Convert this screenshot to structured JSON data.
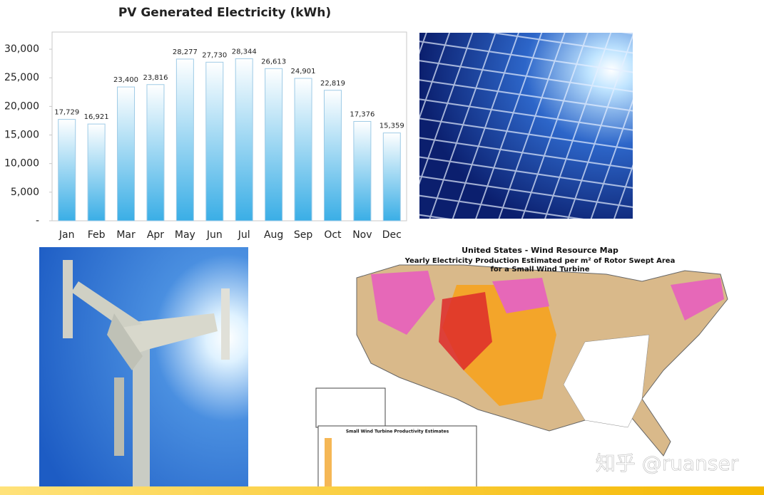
{
  "chart_data": {
    "type": "bar",
    "title": "PV Generated Electricity (kWh)",
    "categories": [
      "Jan",
      "Feb",
      "Mar",
      "Apr",
      "May",
      "Jun",
      "Jul",
      "Aug",
      "Sep",
      "Oct",
      "Nov",
      "Dec"
    ],
    "values": [
      17729,
      16921,
      23400,
      23816,
      28277,
      27730,
      28344,
      26613,
      24901,
      22819,
      17376,
      15359
    ],
    "value_labels": [
      "17,729",
      "16,921",
      "23,400",
      "23,816",
      "28,277",
      "27,730",
      "28,344",
      "26,613",
      "24,901",
      "22,819",
      "17,376",
      "15,359"
    ],
    "color": "#3aaee6",
    "ylim": [
      0,
      33000
    ],
    "yticks": [
      {
        "value": 0,
        "label": "-"
      },
      {
        "value": 5000,
        "label": "5,000"
      },
      {
        "value": 10000,
        "label": "10,000"
      },
      {
        "value": 15000,
        "label": "15,000"
      },
      {
        "value": 20000,
        "label": "20,000"
      },
      {
        "value": 25000,
        "label": "25,000"
      },
      {
        "value": 30000,
        "label": "30,000"
      }
    ],
    "grid": false
  },
  "map": {
    "title": "United States - Wind Resource Map",
    "subtitle": [
      "Yearly Electricity Production Estimated per m² of Rotor Swept Area",
      "for a Small Wind Turbine"
    ],
    "table_title": "Small Wind Turbine Productivity Estimates"
  },
  "watermark": "知乎 @ruanser"
}
